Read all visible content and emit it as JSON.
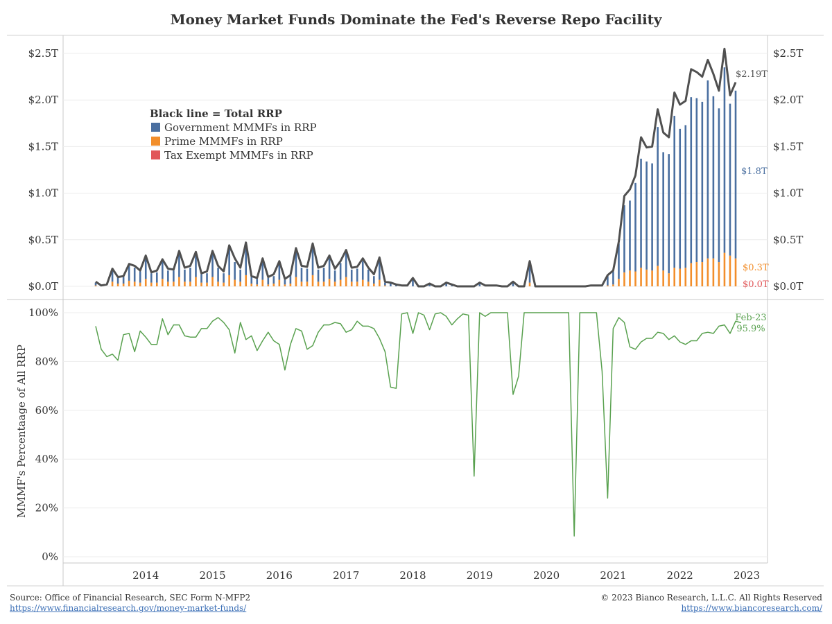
{
  "title": "Money Market Funds Dominate the Fed's Reverse Repo Facility",
  "legend": {
    "heading": "Black line = Total RRP",
    "items": [
      {
        "label": "Government MMMFs in RRP",
        "color": "#4a6fa0"
      },
      {
        "label": "Prime MMMFs in RRP",
        "color": "#f28e2b"
      },
      {
        "label": "Tax Exempt MMMFs in RRP",
        "color": "#e15759"
      }
    ]
  },
  "colors": {
    "total": "#505050",
    "government": "#4a6fa0",
    "prime": "#f28e2b",
    "tax_exempt": "#e15759",
    "share": "#59a14f"
  },
  "footer": {
    "source": "Source: Office of Financial Research, SEC Form N-MFP2",
    "source_link": "https://www.financialresearch.gov/money-market-funds/",
    "copyright": "© 2023 Bianco Research, L.L.C. All Rights Reserved",
    "site_link": "https://www.biancoresearch.com/"
  },
  "chart_data": [
    {
      "type": "bar",
      "subtype": "stacked-bar-with-line",
      "y_axis_ticks": [
        "$0.0T",
        "$0.5T",
        "$1.0T",
        "$1.5T",
        "$2.0T",
        "$2.5T"
      ],
      "y_axis_right_ticks": [
        "$0.0T",
        "$0.5T",
        "$1.0T",
        "$1.5T",
        "$2.0T",
        "$2.5T"
      ],
      "ylim": [
        0,
        2.5
      ],
      "x_start": "2013-10",
      "x_end": "2023-02",
      "annotations": {
        "total_last": "$2.19T",
        "government_last": "$1.8T",
        "prime_last": "$0.3T",
        "tax_exempt_last": "$0.0T"
      },
      "series": [
        {
          "name": "Black line = Total RRP",
          "values": [
            0.05,
            0.01,
            0.02,
            0.19,
            0.1,
            0.11,
            0.24,
            0.22,
            0.17,
            0.33,
            0.15,
            0.17,
            0.29,
            0.19,
            0.18,
            0.38,
            0.2,
            0.22,
            0.37,
            0.14,
            0.16,
            0.38,
            0.22,
            0.16,
            0.44,
            0.3,
            0.2,
            0.47,
            0.11,
            0.09,
            0.3,
            0.1,
            0.13,
            0.27,
            0.08,
            0.12,
            0.41,
            0.22,
            0.21,
            0.46,
            0.2,
            0.22,
            0.33,
            0.19,
            0.27,
            0.39,
            0.2,
            0.21,
            0.3,
            0.2,
            0.13,
            0.31,
            0.05,
            0.04,
            0.02,
            0.01,
            0.01,
            0.09,
            0.0,
            0.0,
            0.03,
            0.0,
            0.0,
            0.04,
            0.02,
            0.0,
            0.0,
            0.0,
            0.0,
            0.04,
            0.01,
            0.01,
            0.01,
            0.0,
            0.0,
            0.05,
            0.0,
            0.0,
            0.27,
            0.0,
            0.0,
            0.0,
            0.0,
            0.0,
            0.0,
            0.0,
            0.0,
            0.0,
            0.0,
            0.01,
            0.01,
            0.01,
            0.12,
            0.17,
            0.48,
            0.97,
            1.04,
            1.19,
            1.6,
            1.49,
            1.5,
            1.9,
            1.65,
            1.6,
            2.08,
            1.95,
            1.99,
            2.33,
            2.3,
            2.25,
            2.43,
            2.28,
            2.1,
            2.55,
            2.05,
            2.19
          ]
        },
        {
          "name": "Government MMMFs in RRP",
          "values": [
            0.03,
            0.0,
            0.0,
            0.13,
            0.06,
            0.07,
            0.16,
            0.15,
            0.12,
            0.23,
            0.1,
            0.11,
            0.19,
            0.12,
            0.12,
            0.25,
            0.13,
            0.15,
            0.25,
            0.09,
            0.1,
            0.25,
            0.15,
            0.1,
            0.29,
            0.19,
            0.13,
            0.31,
            0.07,
            0.06,
            0.2,
            0.07,
            0.08,
            0.18,
            0.05,
            0.08,
            0.27,
            0.15,
            0.14,
            0.31,
            0.13,
            0.15,
            0.22,
            0.12,
            0.18,
            0.26,
            0.13,
            0.14,
            0.2,
            0.13,
            0.08,
            0.2,
            0.03,
            0.03,
            0.02,
            0.01,
            0.01,
            0.09,
            0.0,
            0.0,
            0.03,
            0.0,
            0.0,
            0.03,
            0.01,
            0.0,
            0.0,
            0.0,
            0.0,
            0.04,
            0.01,
            0.01,
            0.01,
            0.0,
            0.0,
            0.05,
            0.0,
            0.0,
            0.22,
            0.0,
            0.0,
            0.0,
            0.0,
            0.0,
            0.0,
            0.0,
            0.0,
            0.0,
            0.0,
            0.01,
            0.01,
            0.01,
            0.1,
            0.14,
            0.38,
            0.72,
            0.75,
            0.95,
            1.17,
            1.16,
            1.15,
            1.49,
            1.27,
            1.28,
            1.63,
            1.5,
            1.53,
            1.78,
            1.76,
            1.72,
            1.91,
            1.74,
            1.65,
            1.99,
            1.63,
            1.8
          ]
        },
        {
          "name": "Prime MMMFs in RRP",
          "values": [
            0.01,
            0.0,
            0.0,
            0.05,
            0.03,
            0.03,
            0.06,
            0.05,
            0.04,
            0.08,
            0.04,
            0.04,
            0.08,
            0.05,
            0.05,
            0.1,
            0.05,
            0.05,
            0.1,
            0.04,
            0.04,
            0.1,
            0.05,
            0.04,
            0.12,
            0.07,
            0.05,
            0.12,
            0.03,
            0.02,
            0.07,
            0.02,
            0.03,
            0.07,
            0.02,
            0.03,
            0.1,
            0.05,
            0.05,
            0.12,
            0.05,
            0.05,
            0.08,
            0.05,
            0.07,
            0.1,
            0.05,
            0.05,
            0.07,
            0.05,
            0.03,
            0.07,
            0.01,
            0.0,
            0.0,
            0.0,
            0.0,
            0.0,
            0.0,
            0.0,
            0.0,
            0.0,
            0.0,
            0.0,
            0.0,
            0.0,
            0.0,
            0.0,
            0.0,
            0.0,
            0.0,
            0.0,
            0.0,
            0.0,
            0.0,
            0.0,
            0.0,
            0.0,
            0.04,
            0.0,
            0.0,
            0.0,
            0.0,
            0.0,
            0.0,
            0.0,
            0.0,
            0.0,
            0.0,
            0.0,
            0.0,
            0.0,
            0.01,
            0.02,
            0.08,
            0.15,
            0.17,
            0.16,
            0.2,
            0.18,
            0.17,
            0.22,
            0.17,
            0.14,
            0.2,
            0.19,
            0.2,
            0.25,
            0.26,
            0.26,
            0.3,
            0.3,
            0.26,
            0.36,
            0.33,
            0.3
          ]
        },
        {
          "name": "Tax Exempt MMMFs in RRP",
          "values": [
            0.0,
            0.0,
            0.0,
            0.0,
            0.0,
            0.0,
            0.0,
            0.0,
            0.0,
            0.0,
            0.0,
            0.0,
            0.0,
            0.0,
            0.0,
            0.0,
            0.0,
            0.0,
            0.0,
            0.0,
            0.0,
            0.0,
            0.0,
            0.0,
            0.0,
            0.0,
            0.0,
            0.0,
            0.0,
            0.0,
            0.0,
            0.0,
            0.0,
            0.0,
            0.0,
            0.0,
            0.0,
            0.0,
            0.0,
            0.0,
            0.0,
            0.0,
            0.0,
            0.0,
            0.0,
            0.0,
            0.0,
            0.0,
            0.0,
            0.0,
            0.0,
            0.0,
            0.0,
            0.0,
            0.0,
            0.0,
            0.0,
            0.0,
            0.0,
            0.0,
            0.0,
            0.0,
            0.0,
            0.0,
            0.0,
            0.0,
            0.0,
            0.0,
            0.0,
            0.0,
            0.0,
            0.0,
            0.0,
            0.0,
            0.0,
            0.0,
            0.0,
            0.0,
            0.0,
            0.0,
            0.0,
            0.0,
            0.0,
            0.0,
            0.0,
            0.0,
            0.0,
            0.0,
            0.0,
            0.0,
            0.0,
            0.0,
            0.0,
            0.0,
            0.0,
            0.0,
            0.0,
            0.0,
            0.0,
            0.0,
            0.0,
            0.0,
            0.0,
            0.0,
            0.0,
            0.0,
            0.0,
            0.0,
            0.0,
            0.0,
            0.0,
            0.0,
            0.0,
            0.0,
            0.0,
            0.0
          ]
        }
      ]
    },
    {
      "type": "line",
      "ylabel": "MMMF's Percentaage of All RRP",
      "y_axis_ticks": [
        "0%",
        "20%",
        "40%",
        "60%",
        "80%",
        "100%"
      ],
      "ylim": [
        0,
        100
      ],
      "x_start": "2013-10",
      "x_end": "2023-02",
      "annotation_date": "Feb-23",
      "annotation_value": "95.9%",
      "values": [
        94.5,
        85,
        82,
        83,
        80.5,
        91,
        91.5,
        84,
        92.5,
        90,
        87,
        87,
        97.5,
        91,
        95,
        95,
        90.5,
        90,
        90,
        93.5,
        93.5,
        96.5,
        98,
        96,
        93,
        83.5,
        96,
        89,
        90.5,
        84.5,
        88.5,
        92,
        88.5,
        87,
        76.5,
        87,
        93.5,
        92.5,
        85,
        86.5,
        92,
        95,
        95,
        96,
        95.5,
        92,
        93,
        96.5,
        94.5,
        94.5,
        93.5,
        89.5,
        84,
        69.5,
        69,
        99.5,
        100,
        91.5,
        100,
        99,
        93,
        99.5,
        100,
        98.5,
        95,
        97.5,
        99.5,
        99,
        33,
        100,
        98.5,
        100,
        100,
        100,
        100,
        66.5,
        74,
        100,
        100,
        100,
        100,
        100,
        100,
        100,
        100,
        100,
        8.5,
        100,
        100,
        100,
        100,
        76,
        24,
        93.5,
        98,
        96,
        86,
        85,
        88,
        89.5,
        89.5,
        92,
        91.5,
        89,
        90.5,
        88,
        87,
        88.5,
        88.5,
        91.5,
        92,
        91.5,
        94.5,
        95,
        91.5,
        96.5,
        95.9
      ]
    }
  ],
  "x_axis": {
    "labels": [
      "2014",
      "2015",
      "2016",
      "2017",
      "2018",
      "2019",
      "2020",
      "2021",
      "2022",
      "2023"
    ]
  }
}
